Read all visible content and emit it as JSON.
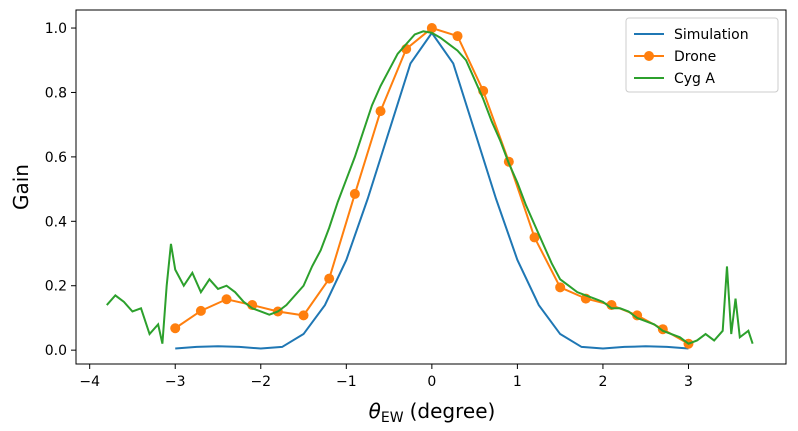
{
  "chart_data": {
    "type": "line",
    "xlabel": {
      "symbol": "θ",
      "subscript": "EW",
      "unit": "(degree)"
    },
    "ylabel": "Gain",
    "xlim": [
      -4.16,
      4.14
    ],
    "ylim": [
      -0.043,
      1.056
    ],
    "xticks": [
      {
        "value": -4,
        "label": "−4"
      },
      {
        "value": -3,
        "label": "−3"
      },
      {
        "value": -2,
        "label": "−2"
      },
      {
        "value": -1,
        "label": "−1"
      },
      0,
      1,
      2,
      3
    ],
    "yticks": [
      {
        "value": 0,
        "label": "0.0"
      },
      {
        "value": 0.2,
        "label": "0.2"
      },
      {
        "value": 0.4,
        "label": "0.4"
      },
      {
        "value": 0.6,
        "label": "0.6"
      },
      {
        "value": 0.8,
        "label": "0.8"
      },
      {
        "value": 1,
        "label": "1.0"
      }
    ],
    "legend": "upper right",
    "series": [
      {
        "name": "Simulation",
        "color": "#1f77b4",
        "x": [
          -3,
          -2.75,
          -2.5,
          -2.25,
          -2,
          -1.75,
          -1.5,
          -1.25,
          -1,
          -0.75,
          -0.5,
          -0.25,
          0,
          0.25,
          0.5,
          0.75,
          1,
          1.25,
          1.5,
          1.75,
          2,
          2.25,
          2.5,
          2.75,
          3
        ],
        "values": [
          0.005,
          0.01,
          0.012,
          0.01,
          0.005,
          0.01,
          0.05,
          0.14,
          0.28,
          0.47,
          0.68,
          0.89,
          0.985,
          0.89,
          0.68,
          0.47,
          0.28,
          0.14,
          0.05,
          0.01,
          0.005,
          0.01,
          0.012,
          0.01,
          0.005
        ]
      },
      {
        "name": "Drone",
        "color": "#ff7f0e",
        "marker": "o",
        "x": [
          -3,
          -2.7,
          -2.4,
          -2.1,
          -1.8,
          -1.5,
          -1.2,
          -0.9,
          -0.6,
          -0.3,
          0,
          0.3,
          0.6,
          0.9,
          1.2,
          1.5,
          1.8,
          2.1,
          2.4,
          2.7,
          3
        ],
        "values": [
          0.068,
          0.122,
          0.158,
          0.14,
          0.12,
          0.108,
          0.222,
          0.485,
          0.742,
          0.935,
          1.0,
          0.975,
          0.805,
          0.585,
          0.35,
          0.195,
          0.16,
          0.14,
          0.108,
          0.065,
          0.02
        ]
      },
      {
        "name": "Cyg A",
        "color": "#2ca02c",
        "x": [
          -3.8,
          -3.7,
          -3.6,
          -3.5,
          -3.4,
          -3.3,
          -3.2,
          -3.15,
          -3.1,
          -3.05,
          -3.0,
          -2.9,
          -2.8,
          -2.7,
          -2.6,
          -2.5,
          -2.4,
          -2.3,
          -2.2,
          -2.1,
          -2.0,
          -1.9,
          -1.8,
          -1.7,
          -1.6,
          -1.5,
          -1.4,
          -1.3,
          -1.2,
          -1.1,
          -1.0,
          -0.9,
          -0.8,
          -0.7,
          -0.6,
          -0.5,
          -0.4,
          -0.3,
          -0.2,
          -0.1,
          0,
          0.1,
          0.2,
          0.3,
          0.4,
          0.5,
          0.6,
          0.7,
          0.8,
          0.9,
          1.0,
          1.1,
          1.2,
          1.3,
          1.4,
          1.5,
          1.6,
          1.7,
          1.8,
          1.9,
          2.0,
          2.1,
          2.2,
          2.3,
          2.4,
          2.5,
          2.6,
          2.7,
          2.8,
          2.9,
          3.0,
          3.1,
          3.2,
          3.3,
          3.4,
          3.45,
          3.5,
          3.55,
          3.6,
          3.7,
          3.75
        ],
        "values": [
          0.14,
          0.17,
          0.15,
          0.12,
          0.13,
          0.05,
          0.08,
          0.02,
          0.2,
          0.33,
          0.25,
          0.2,
          0.24,
          0.18,
          0.22,
          0.19,
          0.2,
          0.18,
          0.15,
          0.13,
          0.12,
          0.11,
          0.12,
          0.14,
          0.17,
          0.2,
          0.26,
          0.31,
          0.38,
          0.46,
          0.53,
          0.6,
          0.68,
          0.76,
          0.82,
          0.87,
          0.92,
          0.95,
          0.98,
          0.99,
          0.985,
          0.97,
          0.95,
          0.93,
          0.9,
          0.84,
          0.78,
          0.71,
          0.65,
          0.58,
          0.52,
          0.45,
          0.39,
          0.33,
          0.27,
          0.22,
          0.2,
          0.18,
          0.17,
          0.16,
          0.15,
          0.13,
          0.13,
          0.12,
          0.1,
          0.09,
          0.08,
          0.06,
          0.05,
          0.04,
          0.02,
          0.03,
          0.05,
          0.03,
          0.06,
          0.26,
          0.05,
          0.16,
          0.04,
          0.06,
          0.02
        ]
      }
    ]
  }
}
